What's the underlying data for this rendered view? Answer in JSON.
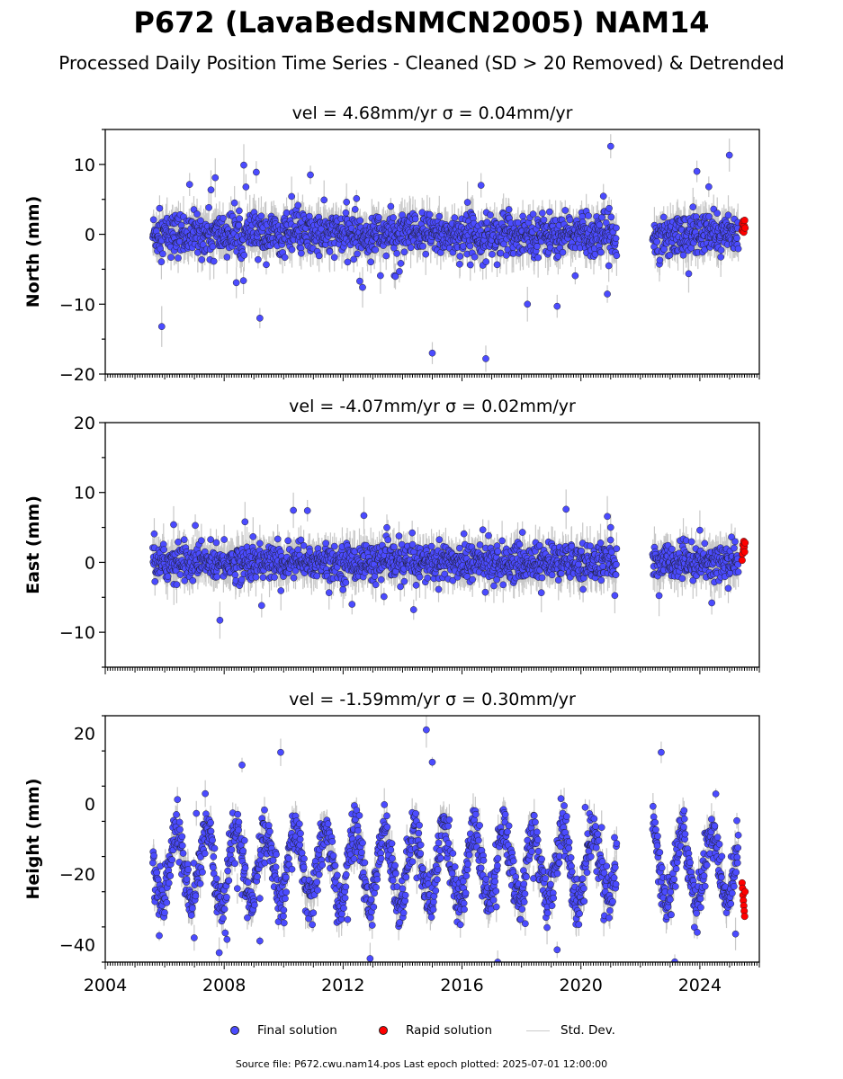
{
  "title": "P672 (LavaBedsNMCN2005) NAM14",
  "subtitle": "Processed Daily Position Time Series - Cleaned (SD > 20 Removed) & Detrended",
  "legend": {
    "final": "Final solution",
    "rapid": "Rapid solution",
    "std": "Std. Dev."
  },
  "footer": "Source file: P672.cwu.nam14.pos  Last epoch plotted: 2025-07-01 12:00:00",
  "colors": {
    "final": "#4b4bff",
    "rapid": "#ff0000",
    "std": "#c8c8c8",
    "edge": "#1a1a1a"
  },
  "chart_data": [
    {
      "type": "scatter",
      "title": "vel = 4.68mm/yr   σ = 0.04mm/yr",
      "ylabel": "North (mm)",
      "xlim": [
        2004,
        2026
      ],
      "ylim": [
        -20,
        15
      ],
      "yticks": [
        -20,
        -10,
        0,
        10
      ],
      "xticks": [
        2004,
        2008,
        2012,
        2016,
        2020,
        2024
      ],
      "data_range": {
        "start": 2005.6,
        "gap": [
          2021.2,
          2022.4
        ],
        "end": 2025.3
      },
      "spread_sd": 1.5,
      "series": [
        {
          "name": "Final solution",
          "sample": [
            [
              2005.9,
              -13.2
            ],
            [
              2009.2,
              -12.0
            ],
            [
              2015.0,
              -17.0
            ],
            [
              2016.8,
              -17.8
            ],
            [
              2019.2,
              -10.3
            ],
            [
              2018.2,
              -10.0
            ],
            [
              2007.7,
              8.1
            ],
            [
              2010.9,
              8.5
            ],
            [
              2021.0,
              12.6
            ],
            [
              2023.9,
              9.0
            ],
            [
              2024.3,
              6.8
            ]
          ]
        },
        {
          "name": "Rapid solution",
          "x_range": [
            2025.42,
            2025.52
          ],
          "values": [
            0.5,
            1.5,
            0.8,
            1.9,
            0.3,
            1.2,
            2.0,
            0.9
          ]
        }
      ]
    },
    {
      "type": "scatter",
      "title": "vel = -4.07mm/yr   σ = 0.02mm/yr",
      "ylabel": "East (mm)",
      "xlim": [
        2004,
        2026
      ],
      "ylim": [
        -15,
        20
      ],
      "yticks": [
        -10,
        0,
        10,
        20
      ],
      "xticks": [
        2004,
        2008,
        2012,
        2016,
        2020,
        2024
      ],
      "data_range": {
        "start": 2005.6,
        "gap": [
          2021.2,
          2022.4
        ],
        "end": 2025.3
      },
      "spread_sd": 1.3,
      "series": [
        {
          "name": "Final solution",
          "sample": [
            [
              2012.3,
              -6.0
            ],
            [
              2024.4,
              -5.8
            ],
            [
              2010.8,
              7.4
            ],
            [
              2012.7,
              6.7
            ],
            [
              2019.5,
              7.6
            ],
            [
              2008.7,
              5.8
            ],
            [
              2006.3,
              5.4
            ],
            [
              2024.0,
              4.6
            ],
            [
              2021.0,
              5.0
            ]
          ]
        },
        {
          "name": "Rapid solution",
          "x_range": [
            2025.42,
            2025.52
          ],
          "values": [
            0.3,
            1.2,
            2.5,
            1.8,
            3.0,
            2.2,
            1.5,
            2.8
          ]
        }
      ]
    },
    {
      "type": "scatter",
      "title": "vel = -1.59mm/yr   σ = 0.30mm/yr",
      "ylabel": "Height (mm)",
      "xlim": [
        2004,
        2026
      ],
      "ylim": [
        -45,
        25
      ],
      "yticks": [
        -40,
        -20,
        0,
        20
      ],
      "xticks": [
        2004,
        2008,
        2012,
        2016,
        2020,
        2024
      ],
      "data_range": {
        "start": 2005.6,
        "gap": [
          2021.2,
          2022.4
        ],
        "end": 2025.3
      },
      "seasonal_amplitude": 10,
      "seasonal_mean": -18,
      "spread_sd": 3.5,
      "series": [
        {
          "name": "Final solution",
          "sample": [
            [
              2014.8,
              21.0
            ],
            [
              2009.9,
              14.6
            ],
            [
              2022.7,
              14.6
            ],
            [
              2008.6,
              11.0
            ],
            [
              2015.0,
              11.8
            ],
            [
              2017.2,
              -45.0
            ],
            [
              2009.2,
              -39.0
            ],
            [
              2019.2,
              -41.5
            ],
            [
              2025.2,
              -37.0
            ]
          ]
        },
        {
          "name": "Rapid solution",
          "x_range": [
            2025.42,
            2025.52
          ],
          "values": [
            -22.5,
            -24.0,
            -26.0,
            -27.5,
            -29.0,
            -30.5,
            -32.0,
            -25.0
          ]
        }
      ]
    }
  ]
}
